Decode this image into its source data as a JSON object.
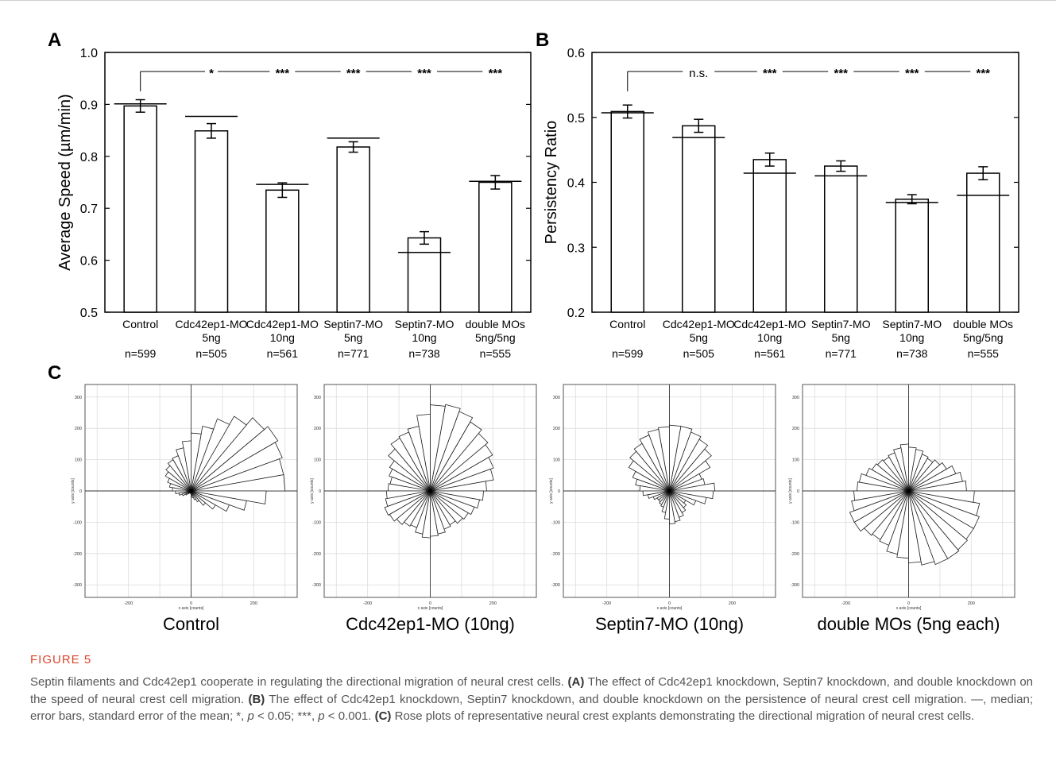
{
  "figure": {
    "label": "FIGURE 5",
    "caption": [
      {
        "t": "Septin filaments and Cdc42ep1 cooperate in regulating the directional migration of neural crest cells. ",
        "b": false
      },
      {
        "t": "(A)",
        "b": true
      },
      {
        "t": " The effect of Cdc42ep1 knockdown, Septin7 knockdown, and double knockdown on the speed of neural crest cell migration. ",
        "b": false
      },
      {
        "t": "(B)",
        "b": true
      },
      {
        "t": " The effect of Cdc42ep1 knockdown, Septin7 knockdown, and double knockdown on the persistence of neural crest cell migration. —, median; error bars, standard error of the mean; *, ",
        "b": false
      },
      {
        "t": "p",
        "i": true
      },
      {
        "t": " < 0.05; ***, ",
        "b": false
      },
      {
        "t": "p",
        "i": true
      },
      {
        "t": " < 0.001. ",
        "b": false
      },
      {
        "t": "(C)",
        "b": true
      },
      {
        "t": " Rose plots of representative neural crest explants demonstrating the directional migration of neural crest cells.",
        "b": false
      }
    ]
  },
  "chart_data": [
    {
      "panel": "A",
      "type": "bar",
      "ylabel": "Average Speed (µm/min)",
      "ylim": [
        0.5,
        1.0
      ],
      "yticks": [
        "0.5",
        "0.6",
        "0.7",
        "0.8",
        "0.9",
        "1.0"
      ],
      "categories": [
        [
          "Control",
          "",
          "n=599"
        ],
        [
          "Cdc42ep1-MO",
          "5ng",
          "n=505"
        ],
        [
          "Cdc42ep1-MO",
          "10ng",
          "n=561"
        ],
        [
          "Septin7-MO",
          "5ng",
          "n=771"
        ],
        [
          "Septin7-MO",
          "10ng",
          "n=738"
        ],
        [
          "double MOs",
          "5ng/5ng",
          "n=555"
        ]
      ],
      "values": [
        0.897,
        0.849,
        0.735,
        0.818,
        0.643,
        0.75
      ],
      "errors": [
        0.012,
        0.014,
        0.014,
        0.01,
        0.012,
        0.013
      ],
      "medians": [
        0.901,
        0.877,
        0.746,
        0.835,
        0.615,
        0.752
      ],
      "significance": [
        "*",
        "***",
        "***",
        "***",
        "***"
      ]
    },
    {
      "panel": "B",
      "type": "bar",
      "ylabel": "Persistency Ratio",
      "ylim": [
        0.2,
        0.6
      ],
      "yticks": [
        "0.2",
        "0.3",
        "0.4",
        "0.5",
        "0.6"
      ],
      "categories": [
        [
          "Control",
          "",
          "n=599"
        ],
        [
          "Cdc42ep1-MO",
          "5ng",
          "n=505"
        ],
        [
          "Cdc42ep1-MO",
          "10ng",
          "n=561"
        ],
        [
          "Septin7-MO",
          "5ng",
          "n=771"
        ],
        [
          "Septin7-MO",
          "10ng",
          "n=738"
        ],
        [
          "double MOs",
          "5ng/5ng",
          "n=555"
        ]
      ],
      "values": [
        0.509,
        0.487,
        0.435,
        0.425,
        0.374,
        0.414
      ],
      "errors": [
        0.01,
        0.01,
        0.01,
        0.008,
        0.007,
        0.01
      ],
      "medians": [
        0.507,
        0.469,
        0.414,
        0.41,
        0.369,
        0.38
      ],
      "significance": [
        "n.s.",
        "***",
        "***",
        "***",
        "***"
      ]
    },
    {
      "panel": "C",
      "type": "rose",
      "xlabel": "x axis [counts]",
      "ylabel": "y axis [counts]",
      "xticks": [
        "-200",
        "0",
        "200"
      ],
      "yticks": [
        "300",
        "200",
        "100",
        "0",
        "-100",
        "-200",
        "-300"
      ],
      "plots": [
        {
          "title": "Control",
          "counts": [
            300,
            300,
            310,
            320,
            305,
            275,
            245,
            210,
            185,
            160,
            140,
            120,
            115,
            105,
            95,
            80,
            70,
            60,
            50,
            40,
            30,
            20,
            12,
            8,
            6,
            6,
            10,
            15,
            22,
            30,
            40,
            60,
            90,
            130,
            180,
            240
          ]
        },
        {
          "title": "Cdc42ep1-MO (10ng)",
          "counts": [
            180,
            205,
            215,
            230,
            240,
            255,
            270,
            280,
            275,
            245,
            210,
            200,
            195,
            175,
            150,
            140,
            130,
            135,
            140,
            145,
            155,
            150,
            140,
            130,
            125,
            140,
            150,
            145,
            140,
            130,
            125,
            135,
            140,
            150,
            160,
            170
          ]
        },
        {
          "title": "Septin7-MO (10ng)",
          "counts": [
            145,
            115,
            110,
            150,
            175,
            190,
            200,
            210,
            210,
            205,
            200,
            190,
            175,
            165,
            150,
            125,
            110,
            95,
            85,
            70,
            55,
            45,
            45,
            50,
            55,
            70,
            90,
            105,
            100,
            90,
            80,
            70,
            60,
            90,
            120,
            140
          ]
        },
        {
          "title": "double MOs (5ng each)",
          "counts": [
            185,
            175,
            160,
            140,
            130,
            120,
            125,
            135,
            140,
            150,
            140,
            130,
            125,
            130,
            135,
            145,
            160,
            165,
            175,
            185,
            200,
            200,
            185,
            180,
            185,
            205,
            215,
            230,
            240,
            250,
            250,
            245,
            240,
            240,
            230,
            210
          ]
        }
      ]
    }
  ]
}
